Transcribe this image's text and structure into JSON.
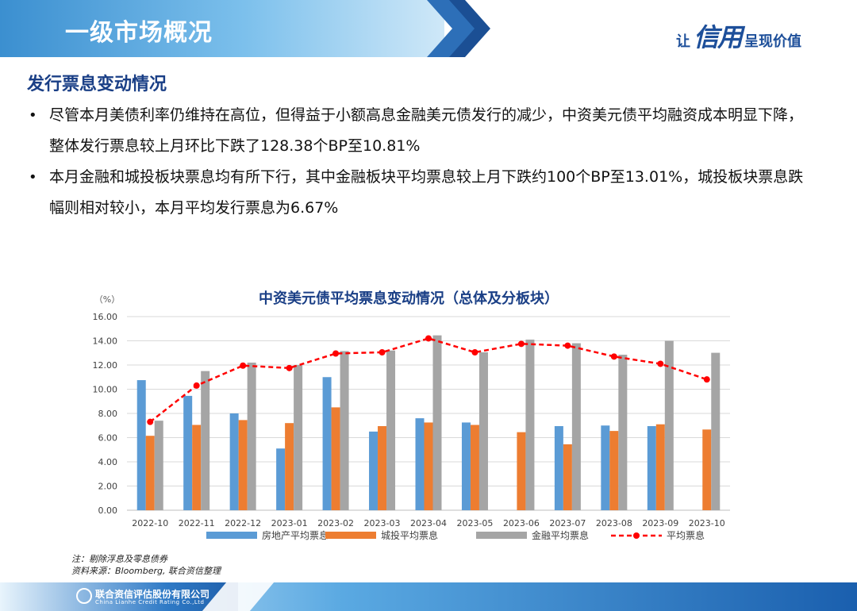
{
  "header": {
    "title": "一级市场概况",
    "slogan_pre": "让",
    "slogan_big": "信用",
    "slogan_post": "呈现价值"
  },
  "section": {
    "title": "发行票息变动情况",
    "bullets": [
      "尽管本月美债利率仍维持在高位，但得益于小额高息金融美元债发行的减少，中资美元债平均融资成本明显下降，整体发行票息较上月环比下跌了128.38个BP至10.81%",
      "本月金融和城投板块票息均有所下行，其中金融板块平均票息较上月下跌约100个BP至13.01%，城投板块票息跌幅则相对较小，本月平均发行票息为6.67%"
    ]
  },
  "chart_data": {
    "type": "bar",
    "title": "中资美元债平均票息变动情况（总体及分板块）",
    "ylabel": "（%）",
    "ylim": [
      0,
      16
    ],
    "yticks": [
      "0.00",
      "2.00",
      "4.00",
      "6.00",
      "8.00",
      "10.00",
      "12.00",
      "14.00",
      "16.00"
    ],
    "categories": [
      "2022-10",
      "2022-11",
      "2022-12",
      "2023-01",
      "2023-02",
      "2023-03",
      "2023-04",
      "2023-05",
      "2023-06",
      "2023-07",
      "2023-08",
      "2023-09",
      "2023-10"
    ],
    "series": [
      {
        "name": "房地产平均票息",
        "type": "bar",
        "color": "#5b9bd5",
        "values": [
          10.75,
          9.45,
          8.0,
          5.1,
          11.0,
          6.5,
          7.6,
          7.25,
          null,
          6.95,
          7.0,
          6.95,
          null
        ]
      },
      {
        "name": "城投平均票息",
        "type": "bar",
        "color": "#ed7d31",
        "values": [
          6.15,
          7.05,
          7.45,
          7.2,
          8.5,
          6.95,
          7.25,
          7.05,
          6.45,
          5.45,
          6.55,
          7.1,
          6.67
        ]
      },
      {
        "name": "金融平均票息",
        "type": "bar",
        "color": "#a5a5a5",
        "values": [
          7.4,
          11.5,
          12.2,
          12.0,
          13.15,
          13.2,
          14.45,
          13.05,
          14.1,
          13.8,
          12.85,
          14.0,
          13.01
        ]
      },
      {
        "name": "平均票息",
        "type": "line",
        "color": "#ff0000",
        "values": [
          7.3,
          10.3,
          11.95,
          11.75,
          12.95,
          13.05,
          14.2,
          13.05,
          13.75,
          13.6,
          12.7,
          12.1,
          10.81
        ]
      }
    ],
    "grid": true,
    "legend": "bottom"
  },
  "notes": {
    "line1": "注：剔除浮息及零息债券",
    "line2": "资料来源：Bloomberg, 联合资信整理"
  },
  "footer": {
    "company": "联合资信评估股份有限公司",
    "company_en": "China Lianhe Credit Rating Co.,Ltd"
  }
}
